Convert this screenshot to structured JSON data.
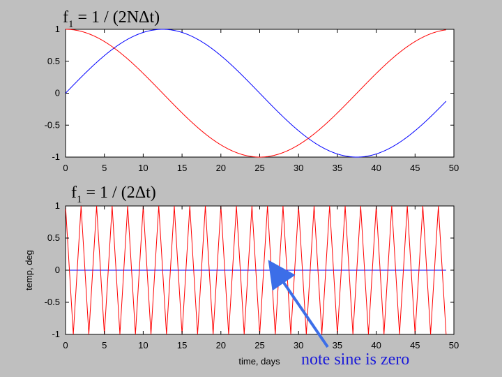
{
  "chart_data": [
    {
      "type": "line",
      "title_main": "f",
      "title_sub": "1",
      "title_rest": " = 1 / (2NΔt)",
      "xlabel": "",
      "ylabel": "",
      "xlim": [
        0,
        50
      ],
      "ylim": [
        -1,
        1
      ],
      "xticks": [
        "0",
        "5",
        "10",
        "15",
        "20",
        "25",
        "30",
        "35",
        "40",
        "45",
        "50"
      ],
      "yticks": [
        "1",
        "0.5",
        "0",
        "-0.5",
        "-1"
      ],
      "series": [
        {
          "kind": "sine",
          "period": 50,
          "x_start": 0,
          "x_end": 49,
          "color": "#0000ff"
        },
        {
          "kind": "cosine",
          "period": 50,
          "x_start": 0,
          "x_end": 49,
          "color": "#ff0000"
        }
      ]
    },
    {
      "type": "line",
      "title_main": "f",
      "title_sub": "1",
      "title_rest": " = 1 / (2Δt)",
      "xlabel": "time, days",
      "ylabel": "temp, deg",
      "xlim": [
        0,
        50
      ],
      "ylim": [
        -1,
        1
      ],
      "xticks": [
        "0",
        "5",
        "10",
        "15",
        "20",
        "25",
        "30",
        "35",
        "40",
        "45",
        "50"
      ],
      "yticks": [
        "1",
        "0.5",
        "0",
        "-0.5",
        "-1"
      ],
      "series": [
        {
          "kind": "sine",
          "period": 2,
          "x_start": 0,
          "x_end": 49,
          "values_note": "zero at integer samples",
          "color": "#0000ff"
        },
        {
          "kind": "cosine",
          "period": 2,
          "x_start": 0,
          "x_end": 49,
          "values_note": "alternates 1, -1",
          "color": "#ff0000"
        }
      ]
    }
  ],
  "annotation": {
    "text": "note sine is zero",
    "color": "#1a1ad9",
    "arrow_color": "#3c6ee8",
    "target_x": 27,
    "target_y": 0
  }
}
